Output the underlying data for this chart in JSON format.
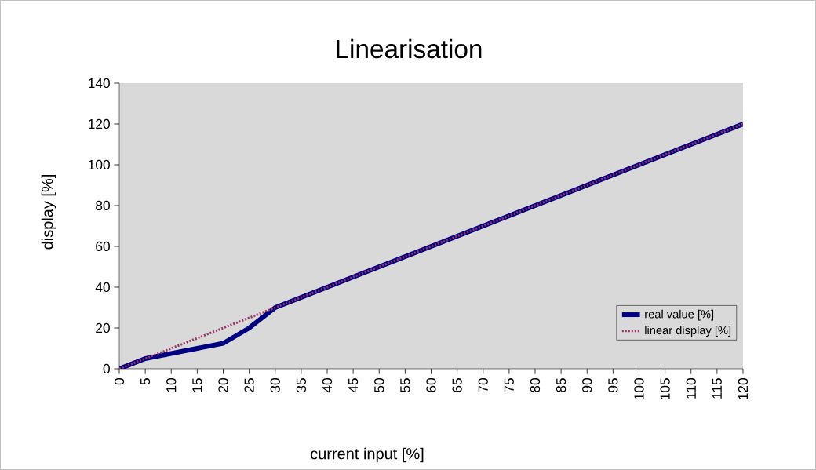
{
  "chart_data": {
    "type": "line",
    "title": "Linearisation",
    "xlabel": "current input [%]",
    "ylabel": "display [%]",
    "categories": [
      "0",
      "5",
      "10",
      "15",
      "20",
      "25",
      "30",
      "35",
      "40",
      "45",
      "50",
      "55",
      "60",
      "65",
      "70",
      "75",
      "80",
      "85",
      "90",
      "95",
      "100",
      "105",
      "110",
      "115",
      "120"
    ],
    "series": [
      {
        "name": "real value  [%]",
        "color": "#000080",
        "line_style": "solid",
        "values": [
          0,
          5,
          7.5,
          10,
          12.5,
          20,
          30,
          35,
          40,
          45,
          50,
          55,
          60,
          65,
          70,
          75,
          80,
          85,
          90,
          95,
          100,
          105,
          110,
          115,
          120
        ]
      },
      {
        "name": "linear display [%]",
        "color": "#993366",
        "line_style": "dotted",
        "values": [
          0,
          5,
          10,
          15,
          20,
          25,
          30,
          35,
          40,
          45,
          50,
          55,
          60,
          65,
          70,
          75,
          80,
          85,
          90,
          95,
          100,
          105,
          110,
          115,
          120
        ]
      }
    ],
    "ylim": [
      0,
      140
    ],
    "yticks": [
      0,
      20,
      40,
      60,
      80,
      100,
      120,
      140
    ],
    "grid": false,
    "legend": "right",
    "marker": "none"
  }
}
